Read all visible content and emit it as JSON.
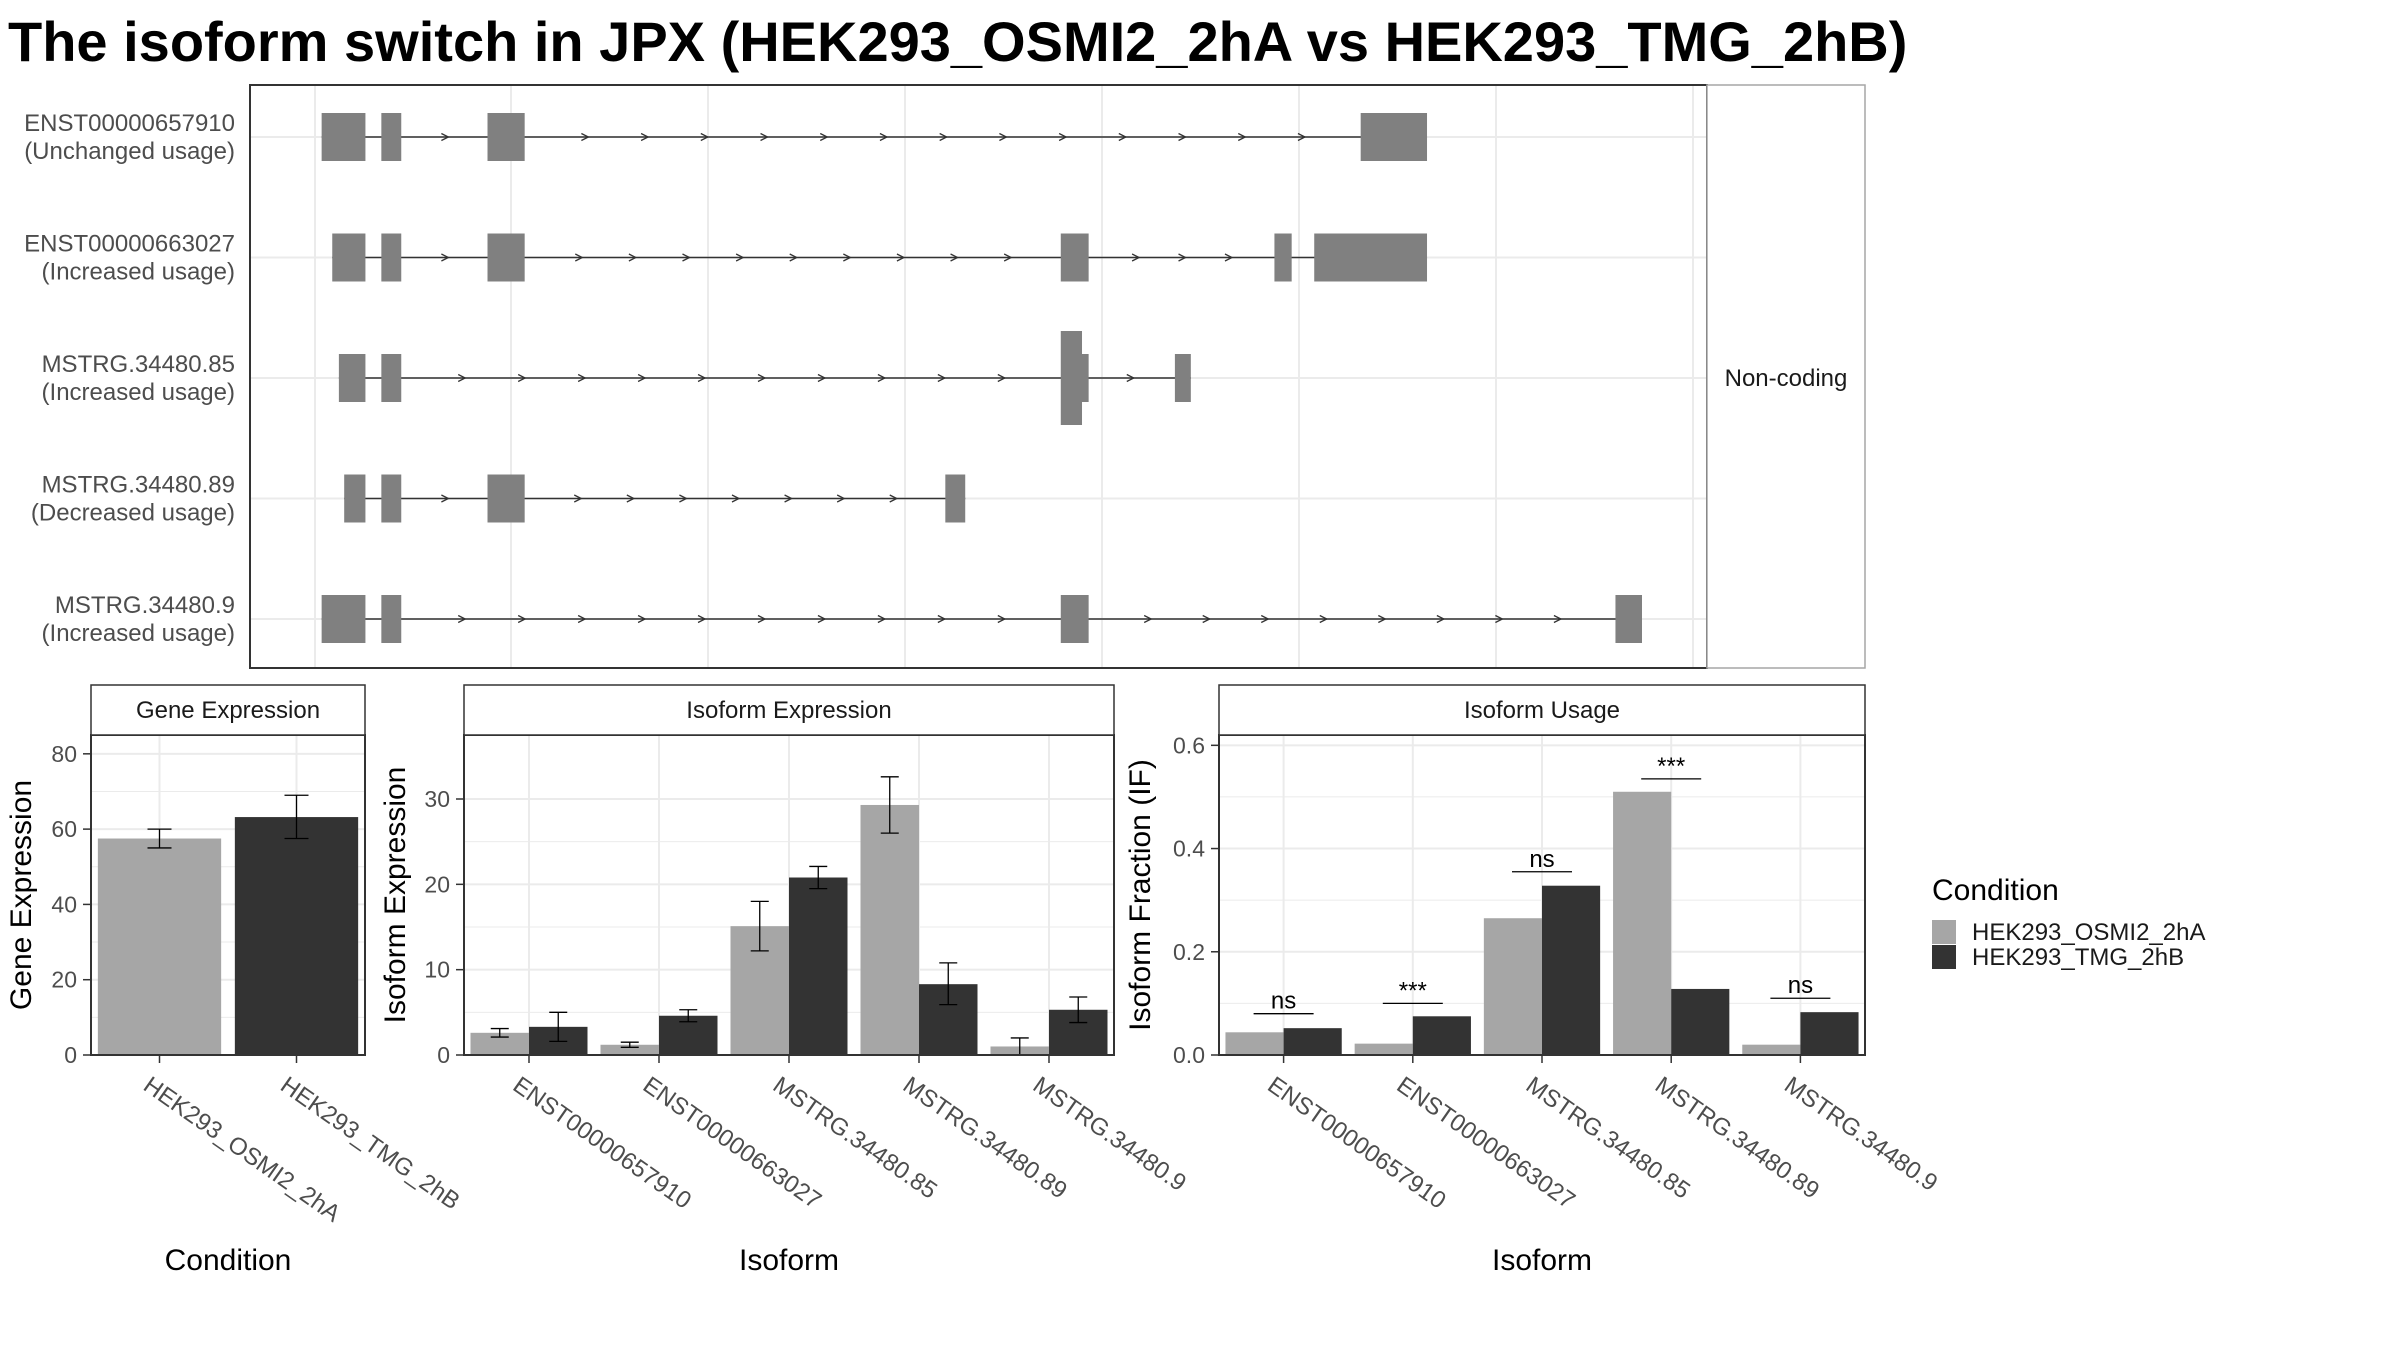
{
  "title": "The isoform switch in JPX (HEK293_OSMI2_2hA vs HEK293_TMG_2hB)",
  "colors": {
    "condition_a": "#a6a6a6",
    "condition_b": "#333333",
    "exon": "#808080",
    "grid": "#ebebeb",
    "panel_border": "#333333",
    "strip_border": "#a6a6a6",
    "intron": "#333333",
    "text_dark": "#000000",
    "text_axis": "#4d4d4d"
  },
  "legend": {
    "title": "Condition",
    "position": "right",
    "items": [
      {
        "label": "HEK293_OSMI2_2hA",
        "color": "#a6a6a6"
      },
      {
        "label": "HEK293_TMG_2hB",
        "color": "#333333"
      }
    ]
  },
  "chart_data": [
    {
      "type": "gene-structure",
      "panel": "transcript structures",
      "facet_label": "Non-coding",
      "grid": true,
      "x_range": [
        0,
        100
      ],
      "isoforms": [
        {
          "name": "ENST00000657910",
          "status": "(Unchanged usage)",
          "exons": [
            [
              0.5,
              3.8
            ],
            [
              5.0,
              6.5
            ],
            [
              13.0,
              15.8
            ],
            [
              78.8,
              83.8
            ]
          ]
        },
        {
          "name": "ENST00000663027",
          "status": "(Increased usage)",
          "exons": [
            [
              1.3,
              3.8
            ],
            [
              5.0,
              6.5
            ],
            [
              13.0,
              15.8
            ],
            [
              56.2,
              58.3
            ],
            [
              72.3,
              73.6
            ],
            [
              75.3,
              83.8
            ]
          ]
        },
        {
          "name": "MSTRG.34480.85",
          "status": "(Increased usage)",
          "exons": [
            [
              1.8,
              3.8
            ],
            [
              5.0,
              6.5
            ],
            [
              56.2,
              58.0
            ],
            [
              64.8,
              66.0
            ]
          ],
          "tall_exon": [
            56.2,
            57.8
          ],
          "tall_tail": [
            57.8,
            58.3
          ]
        },
        {
          "name": "MSTRG.34480.89",
          "status": "(Decreased usage)",
          "exons": [
            [
              2.2,
              3.8
            ],
            [
              5.0,
              6.5
            ],
            [
              13.0,
              15.8
            ],
            [
              47.5,
              49.0
            ]
          ]
        },
        {
          "name": "MSTRG.34480.9",
          "status": "(Increased usage)",
          "exons": [
            [
              0.5,
              3.8
            ],
            [
              5.0,
              6.5
            ],
            [
              56.2,
              58.3
            ],
            [
              98.0,
              100.0
            ]
          ]
        }
      ]
    },
    {
      "type": "bar",
      "title": "Gene Expression",
      "xlabel": "Condition",
      "ylabel": "Gene Expression",
      "ylim": [
        0,
        85
      ],
      "yticks": [
        0,
        20,
        40,
        60,
        80
      ],
      "categories": [
        "HEK293_OSMI2_2hA",
        "HEK293_TMG_2hB"
      ],
      "values": [
        57.5,
        63.2
      ],
      "errors": [
        [
          55.0,
          60.0
        ],
        [
          57.5,
          69.0
        ]
      ]
    },
    {
      "type": "bar",
      "title": "Isoform Expression",
      "xlabel": "Isoform",
      "ylabel": "Isoform Expression",
      "ylim": [
        0,
        37.5
      ],
      "yticks": [
        0,
        10,
        20,
        30
      ],
      "categories": [
        "ENST00000657910",
        "ENST00000663027",
        "MSTRG.34480.85",
        "MSTRG.34480.89",
        "MSTRG.34480.9"
      ],
      "series": [
        {
          "name": "HEK293_OSMI2_2hA",
          "values": [
            2.6,
            1.2,
            15.1,
            29.3,
            1.0
          ],
          "errors": [
            [
              2.1,
              3.1
            ],
            [
              0.9,
              1.5
            ],
            [
              12.2,
              18.0
            ],
            [
              26.0,
              32.6
            ],
            [
              0.0,
              2.0
            ]
          ]
        },
        {
          "name": "HEK293_TMG_2hB",
          "values": [
            3.3,
            4.6,
            20.8,
            8.3,
            5.3
          ],
          "errors": [
            [
              1.6,
              5.0
            ],
            [
              3.9,
              5.3
            ],
            [
              19.5,
              22.1
            ],
            [
              5.9,
              10.8
            ],
            [
              3.8,
              6.8
            ]
          ]
        }
      ]
    },
    {
      "type": "bar",
      "title": "Isoform Usage",
      "xlabel": "Isoform",
      "ylabel": "Isoform Fraction (IF)",
      "ylim": [
        0,
        0.62
      ],
      "yticks": [
        "0.0",
        "0.2",
        "0.4",
        "0.6"
      ],
      "categories": [
        "ENST00000657910",
        "ENST00000663027",
        "MSTRG.34480.85",
        "MSTRG.34480.89",
        "MSTRG.34480.9"
      ],
      "series": [
        {
          "name": "HEK293_OSMI2_2hA",
          "values": [
            0.044,
            0.022,
            0.265,
            0.51,
            0.02
          ]
        },
        {
          "name": "HEK293_TMG_2hB",
          "values": [
            0.052,
            0.075,
            0.328,
            0.128,
            0.083
          ]
        }
      ],
      "significance": [
        {
          "label": "ns",
          "y": 0.08
        },
        {
          "label": "***",
          "y": 0.1
        },
        {
          "label": "ns",
          "y": 0.355
        },
        {
          "label": "***",
          "y": 0.535
        },
        {
          "label": "ns",
          "y": 0.11
        }
      ]
    }
  ]
}
